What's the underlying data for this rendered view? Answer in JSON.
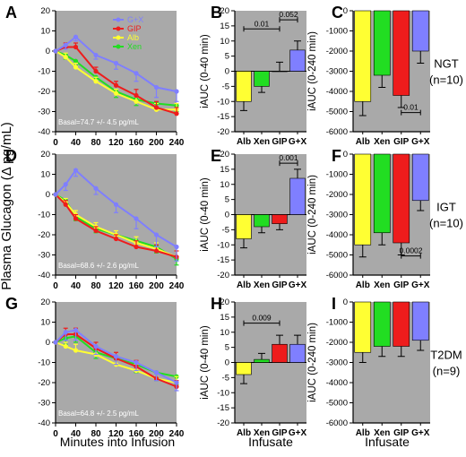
{
  "colors": {
    "gx": "#7f7fff",
    "gip": "#ee1c1c",
    "alb": "#ffff33",
    "xen": "#22dd22",
    "panelBg": "#a9a9a9"
  },
  "labels": {
    "ylabel_left": "Plasma Glucagon (Δ pg/mL)",
    "xlabel_left": "Minutes into Infusion",
    "xlabel_mid": "Infusate",
    "xlabel_right": "Infusate",
    "ylabel_iauc40": "iAUC (0-40 min)",
    "ylabel_iauc240": "iAUC (0-240 min)"
  },
  "legend": [
    "G+X",
    "GIP",
    "Alb",
    "Xen"
  ],
  "rows": [
    {
      "group": "NGT",
      "n": "(n=10)",
      "basal": "Basal=74.7 +/- 4.5 pg/mL"
    },
    {
      "group": "IGT",
      "n": "(n=10)",
      "basal": "Basal=68.6 +/- 2.6 pg/mL"
    },
    {
      "group": "T2DM",
      "n": "(n=9)",
      "basal": "Basal=64.8 +/- 2.5 pg/mL"
    }
  ],
  "chart_data": [
    {
      "panel": "A",
      "type": "line",
      "x": [
        0,
        20,
        40,
        80,
        120,
        160,
        200,
        240
      ],
      "xticks": [
        "0",
        "40",
        "80",
        "120",
        "160",
        "200",
        "240"
      ],
      "ylim": [
        -40,
        20
      ],
      "yticks": [
        "-40",
        "-30",
        "-20",
        "-10",
        "0",
        "10",
        "20"
      ],
      "series": [
        {
          "name": "G+X",
          "values": [
            0,
            3,
            7,
            -2,
            -6,
            -11,
            -18,
            -20
          ],
          "err": [
            0,
            2,
            2,
            2,
            3,
            4,
            5,
            5
          ]
        },
        {
          "name": "GIP",
          "values": [
            0,
            2,
            2,
            -10,
            -17,
            -22,
            -28,
            -31
          ],
          "err": [
            0,
            2,
            2,
            2,
            2,
            3,
            3,
            3
          ]
        },
        {
          "name": "Alb",
          "values": [
            0,
            -3,
            -8,
            -15,
            -21,
            -25,
            -29,
            -29
          ],
          "err": [
            0,
            2,
            2,
            2,
            2,
            3,
            3,
            3
          ]
        },
        {
          "name": "Xen",
          "values": [
            0,
            -2,
            -5,
            -13,
            -20,
            -24,
            -26,
            -27
          ],
          "err": [
            0,
            2,
            2,
            2,
            3,
            3,
            3,
            3
          ]
        }
      ]
    },
    {
      "panel": "B",
      "type": "bar",
      "categories": [
        "Alb",
        "Xen",
        "GIP",
        "G+X"
      ],
      "values": [
        -10,
        -5,
        0,
        7
      ],
      "err": [
        3,
        2,
        3,
        3
      ],
      "ylim": [
        -20,
        20
      ],
      "yticks": [
        "-20",
        "-15",
        "-10",
        "-5",
        "0",
        "5",
        "10",
        "15",
        "20"
      ],
      "annotations": [
        {
          "label": "0.01",
          "from": 0,
          "to": 2,
          "y": 14
        },
        {
          "label": "0.052",
          "from": 2,
          "to": 3,
          "y": 17
        }
      ]
    },
    {
      "panel": "C",
      "type": "bar",
      "categories": [
        "Alb",
        "Xen",
        "GIP",
        "G+X"
      ],
      "values": [
        -4500,
        -3200,
        -4200,
        -2000
      ],
      "err": [
        700,
        600,
        600,
        600
      ],
      "ylim": [
        -6000,
        0
      ],
      "yticks": [
        "-6000",
        "-5000",
        "-4000",
        "-3000",
        "-2000",
        "-1000",
        "0"
      ],
      "annotations": [
        {
          "label": "0.01",
          "from": 2,
          "to": 3,
          "y": -5050
        }
      ]
    },
    {
      "panel": "D",
      "type": "line",
      "x": [
        0,
        20,
        40,
        80,
        120,
        160,
        200,
        240
      ],
      "xticks": [
        "0",
        "40",
        "80",
        "120",
        "160",
        "200",
        "240"
      ],
      "ylim": [
        -40,
        20
      ],
      "yticks": [
        "-40",
        "-30",
        "-20",
        "-10",
        "0",
        "10",
        "20"
      ],
      "series": [
        {
          "name": "G+X",
          "values": [
            0,
            5,
            12,
            3,
            -5,
            -12,
            -20,
            -26
          ],
          "err": [
            0,
            3,
            3,
            3,
            4,
            5,
            6,
            7
          ]
        },
        {
          "name": "GIP",
          "values": [
            0,
            -5,
            -12,
            -18,
            -22,
            -26,
            -28,
            -31
          ],
          "err": [
            0,
            2,
            2,
            2,
            2,
            3,
            3,
            3
          ]
        },
        {
          "name": "Alb",
          "values": [
            0,
            -4,
            -10,
            -16,
            -20,
            -24,
            -27,
            -31
          ],
          "err": [
            0,
            2,
            2,
            2,
            2,
            3,
            3,
            3
          ]
        },
        {
          "name": "Xen",
          "values": [
            0,
            -3,
            -11,
            -17,
            -20,
            -23,
            -26,
            -32
          ],
          "err": [
            0,
            2,
            2,
            2,
            2,
            3,
            3,
            3
          ]
        }
      ]
    },
    {
      "panel": "E",
      "type": "bar",
      "categories": [
        "Alb",
        "Xen",
        "GIP",
        "G+X"
      ],
      "values": [
        -8,
        -4,
        -3,
        12
      ],
      "err": [
        3,
        2,
        2,
        3
      ],
      "ylim": [
        -20,
        20
      ],
      "yticks": [
        "-20",
        "-15",
        "-10",
        "-5",
        "0",
        "5",
        "10",
        "15",
        "20"
      ],
      "annotations": [
        {
          "label": "0.001",
          "from": 2,
          "to": 3,
          "y": 17
        }
      ]
    },
    {
      "panel": "F",
      "type": "bar",
      "categories": [
        "Alb",
        "Xen",
        "GIP",
        "G+X"
      ],
      "values": [
        -4500,
        -3900,
        -4400,
        -2300
      ],
      "err": [
        600,
        600,
        600,
        500
      ],
      "ylim": [
        -6000,
        0
      ],
      "yticks": [
        "-6000",
        "-5000",
        "-4000",
        "-3000",
        "-2000",
        "-1000",
        "0"
      ],
      "annotations": [
        {
          "label": "0.0002",
          "from": 2,
          "to": 3,
          "y": -5050
        }
      ]
    },
    {
      "panel": "G",
      "type": "line",
      "x": [
        0,
        20,
        40,
        80,
        120,
        160,
        200,
        240
      ],
      "xticks": [
        "0",
        "40",
        "80",
        "120",
        "160",
        "200",
        "240"
      ],
      "ylim": [
        -40,
        20
      ],
      "yticks": [
        "-40",
        "-30",
        "-20",
        "-10",
        "0",
        "10",
        "20"
      ],
      "series": [
        {
          "name": "G+X",
          "values": [
            0,
            5,
            6,
            -2,
            -7,
            -10,
            -15,
            -20
          ],
          "err": [
            0,
            4,
            5,
            4,
            4,
            4,
            4,
            4
          ]
        },
        {
          "name": "GIP",
          "values": [
            0,
            4,
            4,
            -3,
            -8,
            -12,
            -18,
            -22
          ],
          "err": [
            0,
            3,
            3,
            3,
            3,
            3,
            3,
            3
          ]
        },
        {
          "name": "Alb",
          "values": [
            0,
            -2,
            -4,
            -6,
            -11,
            -14,
            -18,
            -20
          ],
          "err": [
            0,
            2,
            3,
            3,
            3,
            3,
            3,
            3
          ]
        },
        {
          "name": "Xen",
          "values": [
            0,
            2,
            3,
            -5,
            -8,
            -11,
            -15,
            -17
          ],
          "err": [
            0,
            3,
            3,
            3,
            3,
            4,
            4,
            4
          ]
        }
      ]
    },
    {
      "panel": "H",
      "type": "bar",
      "categories": [
        "Alb",
        "Xen",
        "GIP",
        "G+X"
      ],
      "values": [
        -4,
        1,
        6,
        6
      ],
      "err": [
        3,
        2,
        3,
        3
      ],
      "ylim": [
        -20,
        20
      ],
      "yticks": [
        "-20",
        "-15",
        "-10",
        "-5",
        "0",
        "5",
        "10",
        "15",
        "20"
      ],
      "annotations": [
        {
          "label": "0.009",
          "from": 0,
          "to": 2,
          "y": 13
        }
      ]
    },
    {
      "panel": "I",
      "type": "bar",
      "categories": [
        "Alb",
        "Xen",
        "GIP",
        "G+X"
      ],
      "values": [
        -2500,
        -2200,
        -2200,
        -1900
      ],
      "err": [
        500,
        500,
        500,
        500
      ],
      "ylim": [
        -6000,
        0
      ],
      "yticks": [
        "-6000",
        "-5000",
        "-4000",
        "-3000",
        "-2000",
        "-1000",
        "0"
      ],
      "annotations": []
    }
  ]
}
